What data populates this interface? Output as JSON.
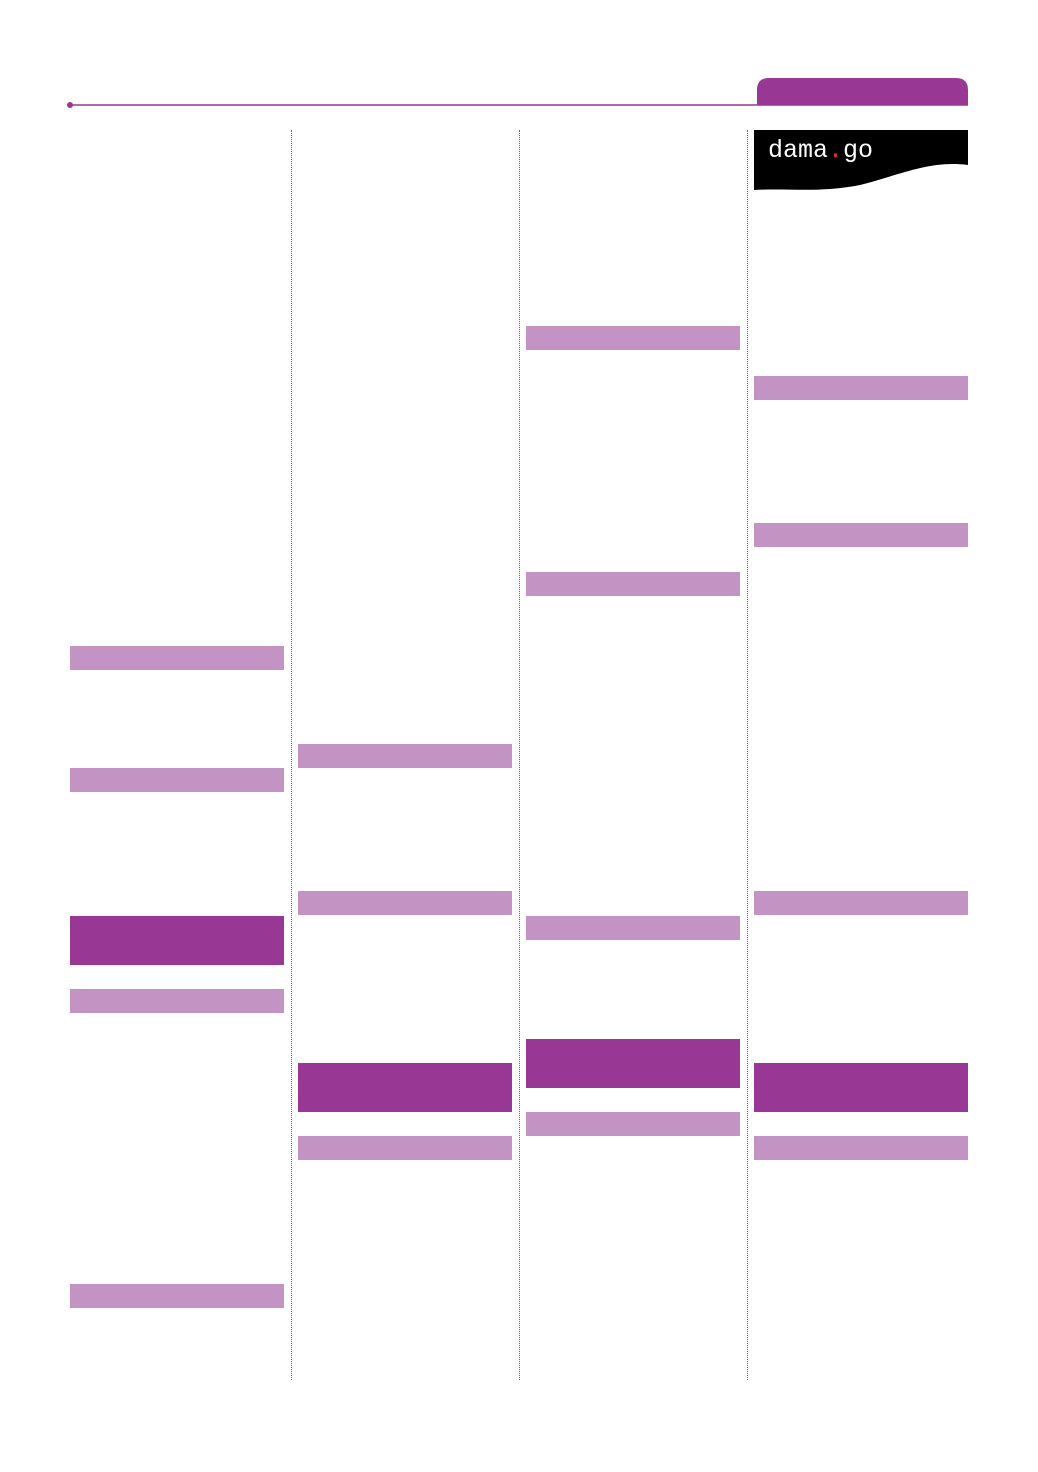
{
  "logo": {
    "name": "dama",
    "dot": ".",
    "suffix": "go"
  }
}
